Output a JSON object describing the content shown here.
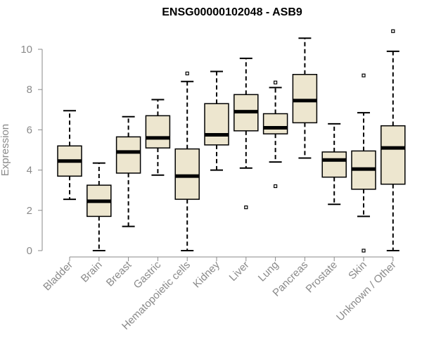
{
  "chart_data": {
    "type": "boxplot",
    "title": "ENSG00000102048 - ASB9",
    "xlabel": "",
    "ylabel": "Expression",
    "ylim": [
      0,
      11
    ],
    "yticks": [
      0,
      2,
      4,
      6,
      8,
      10
    ],
    "grid": false,
    "legend": "none",
    "box_fill": "#ede6cf",
    "box_stroke": "#000000",
    "median_color": "#000000",
    "categories": [
      "Bladder",
      "Brain",
      "Breast",
      "Gastric",
      "Hematopoietic cells",
      "Kidney",
      "Liver",
      "Lung",
      "Pancreas",
      "Prostate",
      "Skin",
      "Unknown / Other"
    ],
    "boxes": [
      {
        "category": "Bladder",
        "min": 2.55,
        "q1": 3.7,
        "median": 4.45,
        "q3": 5.2,
        "max": 6.95,
        "outliers": []
      },
      {
        "category": "Brain",
        "min": 0.0,
        "q1": 1.7,
        "median": 2.45,
        "q3": 3.25,
        "max": 4.35,
        "outliers": []
      },
      {
        "category": "Breast",
        "min": 1.2,
        "q1": 3.85,
        "median": 4.9,
        "q3": 5.65,
        "max": 6.65,
        "outliers": []
      },
      {
        "category": "Gastric",
        "min": 3.75,
        "q1": 5.1,
        "median": 5.6,
        "q3": 6.7,
        "max": 7.5,
        "outliers": []
      },
      {
        "category": "Hematopoietic cells",
        "min": 0.0,
        "q1": 2.55,
        "median": 3.7,
        "q3": 5.05,
        "max": 8.4,
        "outliers": [
          8.8
        ]
      },
      {
        "category": "Kidney",
        "min": 4.0,
        "q1": 5.25,
        "median": 5.75,
        "q3": 7.3,
        "max": 8.9,
        "outliers": []
      },
      {
        "category": "Liver",
        "min": 4.1,
        "q1": 5.95,
        "median": 6.9,
        "q3": 7.75,
        "max": 9.55,
        "outliers": [
          2.15
        ]
      },
      {
        "category": "Lung",
        "min": 4.4,
        "q1": 5.8,
        "median": 6.1,
        "q3": 6.8,
        "max": 8.1,
        "outliers": [
          8.35,
          3.2
        ]
      },
      {
        "category": "Pancreas",
        "min": 4.6,
        "q1": 6.35,
        "median": 7.45,
        "q3": 8.75,
        "max": 10.55,
        "outliers": []
      },
      {
        "category": "Prostate",
        "min": 2.3,
        "q1": 3.65,
        "median": 4.5,
        "q3": 4.9,
        "max": 6.3,
        "outliers": []
      },
      {
        "category": "Skin",
        "min": 1.7,
        "q1": 3.05,
        "median": 4.05,
        "q3": 4.95,
        "max": 6.85,
        "outliers": [
          8.7,
          0.0
        ]
      },
      {
        "category": "Unknown / Other",
        "min": 0.0,
        "q1": 3.3,
        "median": 5.1,
        "q3": 6.2,
        "max": 9.9,
        "outliers": [
          10.9
        ]
      }
    ]
  }
}
